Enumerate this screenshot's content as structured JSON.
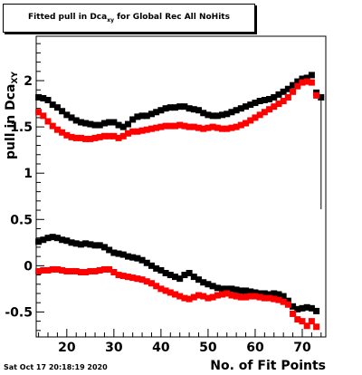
{
  "title": {
    "main": "Fitted pull in Dca",
    "sub": "xy",
    "tail": " for Global Rec All NoHits"
  },
  "datestamp": "Sat Oct 17 20:18:19 2020",
  "chart_data": {
    "type": "scatter",
    "xlabel": "No. of Fit Points",
    "ylabel": {
      "main": "pull in Dca",
      "sub": "XY"
    },
    "xlim": [
      13.5,
      75
    ],
    "ylim": [
      -0.77,
      2.48
    ],
    "xticks": [
      20,
      30,
      40,
      50,
      60,
      70
    ],
    "yticks": [
      -0.5,
      0,
      0.5,
      1,
      1.5,
      2
    ],
    "ytick_labels": [
      "-0.5",
      "0",
      "0.5",
      "1",
      "1.5",
      "2"
    ],
    "grid": false,
    "legend": "none",
    "series": [
      {
        "color": "#000000",
        "x": [
          14,
          15,
          16,
          17,
          18,
          19,
          20,
          21,
          22,
          23,
          24,
          25,
          26,
          27,
          28,
          29,
          30,
          31,
          32,
          33,
          34,
          35,
          36,
          37,
          38,
          39,
          40,
          41,
          42,
          43,
          44,
          45,
          46,
          47,
          48,
          49,
          50,
          51,
          52,
          53,
          54,
          55,
          56,
          57,
          58,
          59,
          60,
          61,
          62,
          63,
          64,
          65,
          66,
          67,
          68,
          69,
          70,
          71,
          72,
          73,
          74
        ],
        "y": [
          1.82,
          1.81,
          1.79,
          1.74,
          1.71,
          1.67,
          1.63,
          1.6,
          1.57,
          1.55,
          1.54,
          1.53,
          1.52,
          1.52,
          1.54,
          1.55,
          1.55,
          1.52,
          1.5,
          1.53,
          1.58,
          1.61,
          1.62,
          1.62,
          1.64,
          1.66,
          1.68,
          1.7,
          1.71,
          1.71,
          1.72,
          1.72,
          1.7,
          1.69,
          1.68,
          1.65,
          1.63,
          1.62,
          1.62,
          1.63,
          1.64,
          1.66,
          1.68,
          1.7,
          1.72,
          1.74,
          1.76,
          1.78,
          1.79,
          1.8,
          1.82,
          1.85,
          1.88,
          1.91,
          1.95,
          1.99,
          2.02,
          2.03,
          2.06,
          1.87,
          1.82
        ]
      },
      {
        "color": "#ff0000",
        "x": [
          14,
          15,
          16,
          17,
          18,
          19,
          20,
          21,
          22,
          23,
          24,
          25,
          26,
          27,
          28,
          29,
          30,
          31,
          32,
          33,
          34,
          35,
          36,
          37,
          38,
          39,
          40,
          41,
          42,
          43,
          44,
          45,
          46,
          47,
          48,
          49,
          50,
          51,
          52,
          53,
          54,
          55,
          56,
          57,
          58,
          59,
          60,
          61,
          62,
          63,
          64,
          65,
          66,
          67,
          68,
          69,
          70,
          71,
          72,
          73
        ],
        "y": [
          1.66,
          1.62,
          1.56,
          1.51,
          1.47,
          1.44,
          1.41,
          1.39,
          1.38,
          1.38,
          1.37,
          1.37,
          1.38,
          1.39,
          1.4,
          1.4,
          1.4,
          1.38,
          1.4,
          1.43,
          1.45,
          1.45,
          1.46,
          1.47,
          1.48,
          1.49,
          1.5,
          1.51,
          1.51,
          1.51,
          1.52,
          1.51,
          1.5,
          1.5,
          1.49,
          1.48,
          1.49,
          1.5,
          1.49,
          1.48,
          1.48,
          1.49,
          1.5,
          1.52,
          1.54,
          1.57,
          1.6,
          1.63,
          1.66,
          1.69,
          1.72,
          1.75,
          1.78,
          1.82,
          1.88,
          1.94,
          1.98,
          1.99,
          1.98,
          1.84
        ]
      },
      {
        "color": "#000000",
        "x": [
          14,
          15,
          16,
          17,
          18,
          19,
          20,
          21,
          22,
          23,
          24,
          25,
          26,
          27,
          28,
          29,
          30,
          31,
          32,
          33,
          34,
          35,
          36,
          37,
          38,
          39,
          40,
          41,
          42,
          43,
          44,
          45,
          46,
          47,
          48,
          49,
          50,
          51,
          52,
          53,
          54,
          55,
          56,
          57,
          58,
          59,
          60,
          61,
          62,
          63,
          64,
          65,
          66,
          67,
          68,
          69,
          70,
          71,
          72,
          73
        ],
        "y": [
          0.26,
          0.28,
          0.3,
          0.31,
          0.3,
          0.28,
          0.27,
          0.25,
          0.24,
          0.23,
          0.24,
          0.23,
          0.22,
          0.22,
          0.2,
          0.17,
          0.14,
          0.13,
          0.12,
          0.1,
          0.09,
          0.08,
          0.06,
          0.03,
          0.0,
          -0.03,
          -0.05,
          -0.08,
          -0.1,
          -0.12,
          -0.14,
          -0.1,
          -0.08,
          -0.12,
          -0.15,
          -0.18,
          -0.2,
          -0.22,
          -0.24,
          -0.25,
          -0.25,
          -0.25,
          -0.26,
          -0.27,
          -0.27,
          -0.28,
          -0.29,
          -0.3,
          -0.3,
          -0.31,
          -0.3,
          -0.31,
          -0.33,
          -0.38,
          -0.44,
          -0.47,
          -0.46,
          -0.45,
          -0.46,
          -0.49
        ]
      },
      {
        "color": "#ff0000",
        "x": [
          14,
          15,
          16,
          17,
          18,
          19,
          20,
          21,
          22,
          23,
          24,
          25,
          26,
          27,
          28,
          29,
          30,
          31,
          32,
          33,
          34,
          35,
          36,
          37,
          38,
          39,
          40,
          41,
          42,
          43,
          44,
          45,
          46,
          47,
          48,
          49,
          50,
          51,
          52,
          53,
          54,
          55,
          56,
          57,
          58,
          59,
          60,
          61,
          62,
          63,
          64,
          65,
          66,
          67,
          68,
          69,
          70,
          71,
          72,
          73
        ],
        "y": [
          -0.06,
          -0.05,
          -0.05,
          -0.04,
          -0.04,
          -0.05,
          -0.06,
          -0.06,
          -0.06,
          -0.07,
          -0.07,
          -0.06,
          -0.06,
          -0.05,
          -0.04,
          -0.04,
          -0.07,
          -0.1,
          -0.11,
          -0.12,
          -0.13,
          -0.14,
          -0.15,
          -0.17,
          -0.19,
          -0.22,
          -0.25,
          -0.27,
          -0.29,
          -0.31,
          -0.33,
          -0.35,
          -0.36,
          -0.34,
          -0.32,
          -0.33,
          -0.35,
          -0.34,
          -0.32,
          -0.31,
          -0.3,
          -0.32,
          -0.33,
          -0.34,
          -0.34,
          -0.33,
          -0.33,
          -0.34,
          -0.35,
          -0.35,
          -0.36,
          -0.37,
          -0.39,
          -0.42,
          -0.52,
          -0.58,
          -0.6,
          -0.65,
          -0.6,
          -0.66
        ]
      }
    ]
  }
}
